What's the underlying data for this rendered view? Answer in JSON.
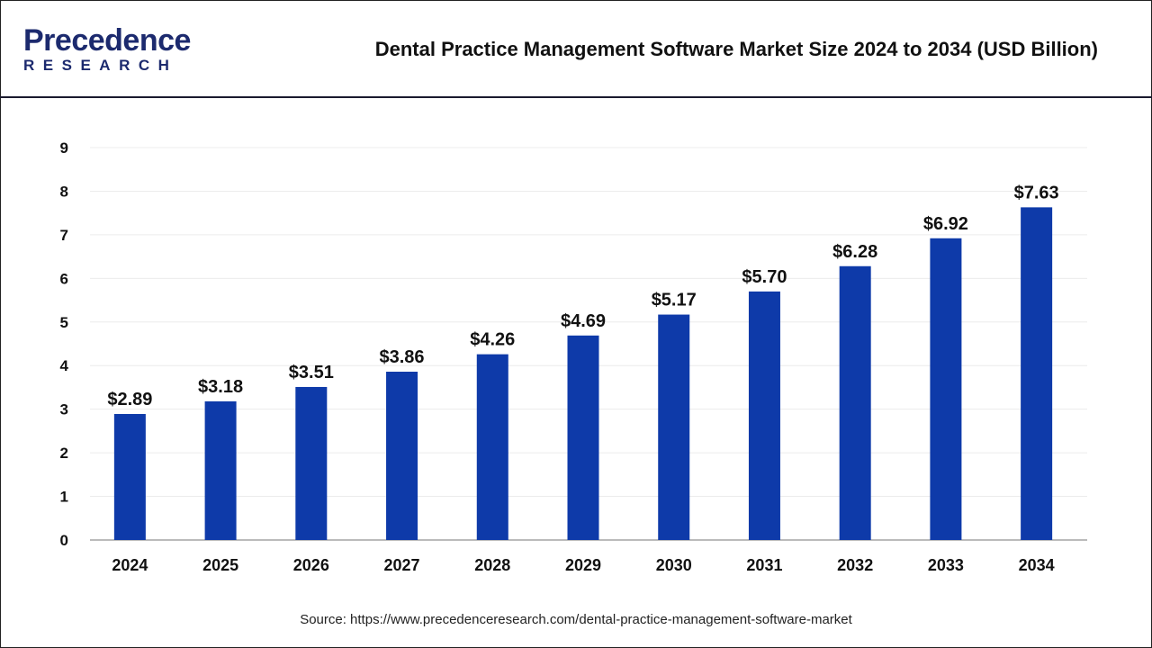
{
  "header": {
    "logo_text_top": "Precedence",
    "logo_text_bottom": "RESEARCH",
    "title": "Dental Practice Management Software Market Size 2024 to 2034 (USD Billion)"
  },
  "source": "Source: https://www.precedenceresearch.com/dental-practice-management-software-market",
  "chart_data": {
    "type": "bar",
    "title": "Dental Practice Management Software Market Size 2024 to 2034 (USD Billion)",
    "categories": [
      "2024",
      "2025",
      "2026",
      "2027",
      "2028",
      "2029",
      "2030",
      "2031",
      "2032",
      "2033",
      "2034"
    ],
    "values": [
      2.89,
      3.18,
      3.51,
      3.86,
      4.26,
      4.69,
      5.17,
      5.7,
      6.28,
      6.92,
      7.63
    ],
    "data_labels": [
      "$2.89",
      "$3.18",
      "$3.51",
      "$3.86",
      "$4.26",
      "$4.69",
      "$5.17",
      "$5.70",
      "$6.28",
      "$6.92",
      "$7.63"
    ],
    "yticks": [
      "0",
      "1",
      "2",
      "3",
      "4",
      "5",
      "6",
      "7",
      "8",
      "9"
    ],
    "ylim": [
      0,
      9
    ],
    "xlabel": "",
    "ylabel": "",
    "grid": true,
    "bar_color": "#0e3aa9"
  }
}
